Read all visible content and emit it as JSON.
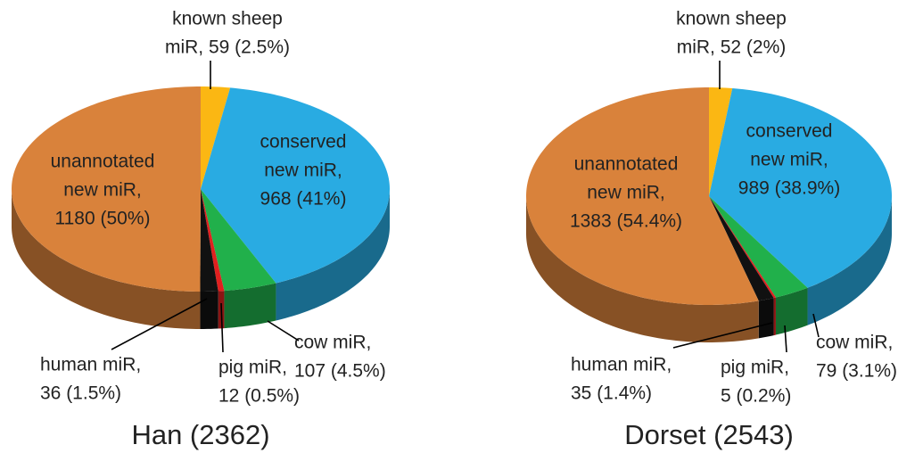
{
  "chart_data": [
    {
      "type": "pie3d",
      "title": "Han (2362)",
      "labels": [
        [
          "known sheep",
          "miR, 59 (2.5%)"
        ],
        [
          "conserved",
          "new miR,",
          "968 (41%)"
        ],
        [
          "cow miR,",
          "107 (4.5%)"
        ],
        [
          "pig miR,",
          "12 (0.5%)"
        ],
        [
          "human miR,",
          "36 (1.5%)"
        ],
        [
          "unannotated",
          "new miR,",
          "1180 (50%)"
        ]
      ],
      "values": [
        59,
        968,
        107,
        12,
        36,
        1180
      ],
      "colors": [
        "#fbb713",
        "#29abe2",
        "#21b04b",
        "#e0201f",
        "#111111",
        "#d9823b"
      ]
    },
    {
      "type": "pie3d",
      "title": "Dorset (2543)",
      "labels": [
        [
          "known sheep",
          "miR, 52 (2%)"
        ],
        [
          "conserved",
          "new miR,",
          "989 (38.9%)"
        ],
        [
          "cow miR,",
          "79 (3.1%)"
        ],
        [
          "pig miR,",
          "5 (0.2%)"
        ],
        [
          "human miR,",
          "35 (1.4%)"
        ],
        [
          "unannotated",
          "new miR,",
          "1383 (54.4%)"
        ]
      ],
      "values": [
        52,
        989,
        79,
        5,
        35,
        1383
      ],
      "colors": [
        "#fbb713",
        "#29abe2",
        "#21b04b",
        "#e0201f",
        "#111111",
        "#d9823b"
      ]
    }
  ]
}
